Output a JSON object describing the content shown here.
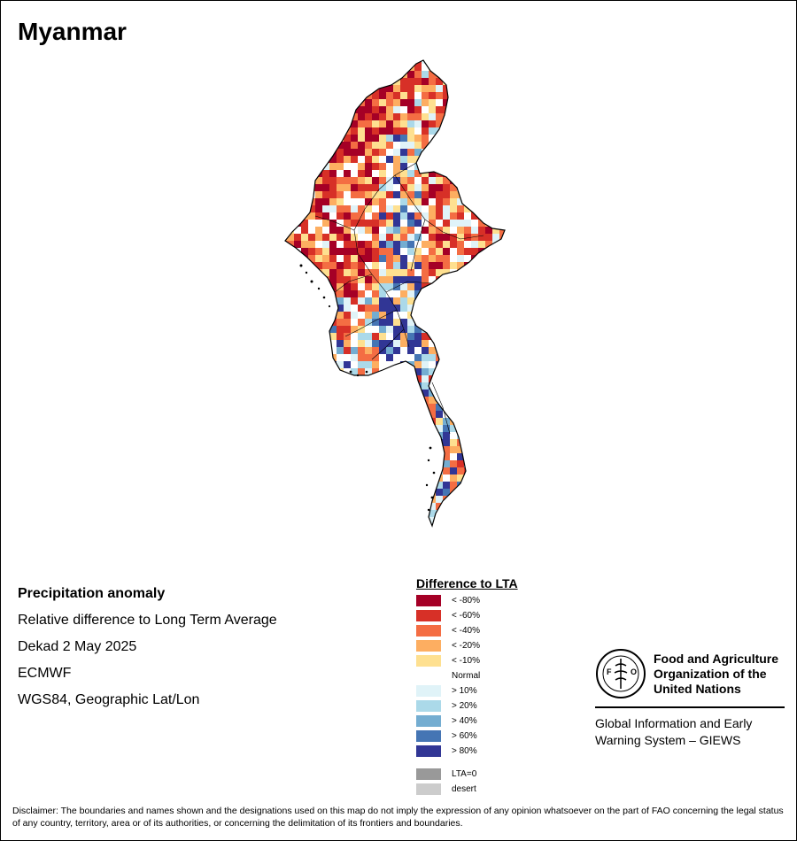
{
  "title": "Myanmar",
  "info": {
    "heading": "Precipitation anomaly",
    "line1": "Relative difference to Long Term Average",
    "line2": "Dekad 2 May 2025",
    "line3": "ECMWF",
    "line4": "WGS84, Geographic Lat/Lon"
  },
  "legend": {
    "title": "Difference to LTA",
    "items": [
      {
        "label": "< -80%",
        "color": "#a50026"
      },
      {
        "label": "< -60%",
        "color": "#d73027"
      },
      {
        "label": "< -40%",
        "color": "#f46d43"
      },
      {
        "label": "< -20%",
        "color": "#fdae61"
      },
      {
        "label": "< -10%",
        "color": "#fee090"
      },
      {
        "label": "Normal",
        "color": "#ffffff"
      },
      {
        "label": "> 10%",
        "color": "#e0f3f8"
      },
      {
        "label": "> 20%",
        "color": "#abd9e9"
      },
      {
        "label": "> 40%",
        "color": "#74add1"
      },
      {
        "label": "> 60%",
        "color": "#4575b4"
      },
      {
        "label": "> 80%",
        "color": "#313695"
      }
    ],
    "extra": [
      {
        "label": "LTA=0",
        "color": "#999999"
      },
      {
        "label": "desert",
        "color": "#cccccc"
      }
    ]
  },
  "fao": {
    "emblem_text": "FAO",
    "emblem_motto": "FIAT PANIS",
    "name_line1": "Food and Agriculture",
    "name_line2": "Organization of the",
    "name_line3": "United Nations",
    "giews_line1": "Global Information and Early",
    "giews_line2": "Warning System – GIEWS"
  },
  "disclaimer": "Disclaimer: The boundaries and names shown and the designations used on this map do not imply the expression of any opinion whatsoever on the part of FAO concerning the legal status of any country, territory, area or of its authorities, or concerning the delimitation of its frontiers and boundaries."
}
